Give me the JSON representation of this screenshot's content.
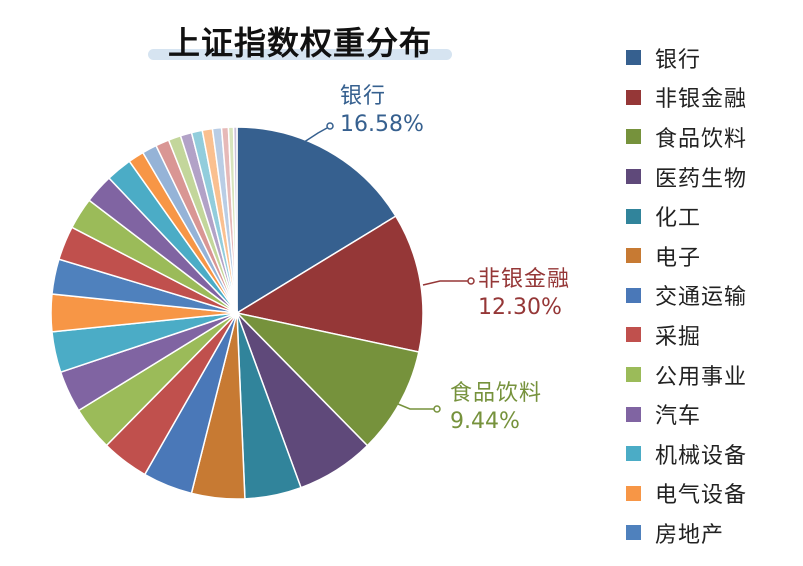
{
  "chart_data": {
    "type": "pie",
    "title": "上证指数权重分布",
    "slices": [
      {
        "label": "银行",
        "value": 16.58,
        "color": "#36608f",
        "display": "16.58%"
      },
      {
        "label": "非银金融",
        "value": 12.3,
        "color": "#953737",
        "display": "12.30%"
      },
      {
        "label": "食品饮料",
        "value": 9.44,
        "color": "#76923c",
        "display": "9.44%"
      },
      {
        "label": "医药生物",
        "value": 6.9,
        "color": "#5f497a",
        "display": ""
      },
      {
        "label": "化工",
        "value": 5.0,
        "color": "#31849b",
        "display": ""
      },
      {
        "label": "电子",
        "value": 4.7,
        "color": "#c77a33",
        "display": ""
      },
      {
        "label": "交通运输",
        "value": 4.4,
        "color": "#4a78b8",
        "display": ""
      },
      {
        "label": "采掘",
        "value": 4.2,
        "color": "#c0504d",
        "display": ""
      },
      {
        "label": "公用事业",
        "value": 3.9,
        "color": "#9bbb59",
        "display": ""
      },
      {
        "label": "汽车",
        "value": 3.7,
        "color": "#8064a2",
        "display": ""
      },
      {
        "label": "机械设备",
        "value": 3.6,
        "color": "#4bacc6",
        "display": ""
      },
      {
        "label": "电气设备",
        "value": 3.3,
        "color": "#f79646",
        "display": ""
      },
      {
        "label": "房地产",
        "value": 3.1,
        "color": "#4f81bd",
        "display": ""
      },
      {
        "label": "",
        "value": 3.0,
        "color": "#c0504d",
        "display": ""
      },
      {
        "label": "",
        "value": 2.8,
        "color": "#9bbb59",
        "display": ""
      },
      {
        "label": "",
        "value": 2.6,
        "color": "#8064a2",
        "display": ""
      },
      {
        "label": "",
        "value": 2.3,
        "color": "#4bacc6",
        "display": ""
      },
      {
        "label": "",
        "value": 1.4,
        "color": "#f79646",
        "display": ""
      },
      {
        "label": "",
        "value": 1.3,
        "color": "#95b3d7",
        "display": ""
      },
      {
        "label": "",
        "value": 1.2,
        "color": "#d99694",
        "display": ""
      },
      {
        "label": "",
        "value": 1.1,
        "color": "#c3d69b",
        "display": ""
      },
      {
        "label": "",
        "value": 1.0,
        "color": "#b2a2c7",
        "display": ""
      },
      {
        "label": "",
        "value": 0.95,
        "color": "#92cddc",
        "display": ""
      },
      {
        "label": "",
        "value": 0.9,
        "color": "#fac090",
        "display": ""
      },
      {
        "label": "",
        "value": 0.8,
        "color": "#b9cde5",
        "display": ""
      },
      {
        "label": "",
        "value": 0.6,
        "color": "#e6b9b8",
        "display": ""
      },
      {
        "label": "",
        "value": 0.45,
        "color": "#d7e4bd",
        "display": ""
      },
      {
        "label": "",
        "value": 0.3,
        "color": "#ccc1da",
        "display": ""
      }
    ],
    "legend_position": "right",
    "callouts": [
      {
        "label": "银行",
        "value": "16.58%",
        "color": "#36608f"
      },
      {
        "label": "非银金融",
        "value": "12.30%",
        "color": "#953737"
      },
      {
        "label": "食品饮料",
        "value": "9.44%",
        "color": "#76923c"
      }
    ],
    "legend": [
      {
        "label": "银行",
        "color": "#36608f"
      },
      {
        "label": "非银金融",
        "color": "#953737"
      },
      {
        "label": "食品饮料",
        "color": "#76923c"
      },
      {
        "label": "医药生物",
        "color": "#5f497a"
      },
      {
        "label": "化工",
        "color": "#31849b"
      },
      {
        "label": "电子",
        "color": "#c77a33"
      },
      {
        "label": "交通运输",
        "color": "#4a78b8"
      },
      {
        "label": "采掘",
        "color": "#c0504d"
      },
      {
        "label": "公用事业",
        "color": "#9bbb59"
      },
      {
        "label": "汽车",
        "color": "#8064a2"
      },
      {
        "label": "机械设备",
        "color": "#4bacc6"
      },
      {
        "label": "电气设备",
        "color": "#f79646"
      },
      {
        "label": "房地产",
        "color": "#4f81bd"
      }
    ]
  }
}
